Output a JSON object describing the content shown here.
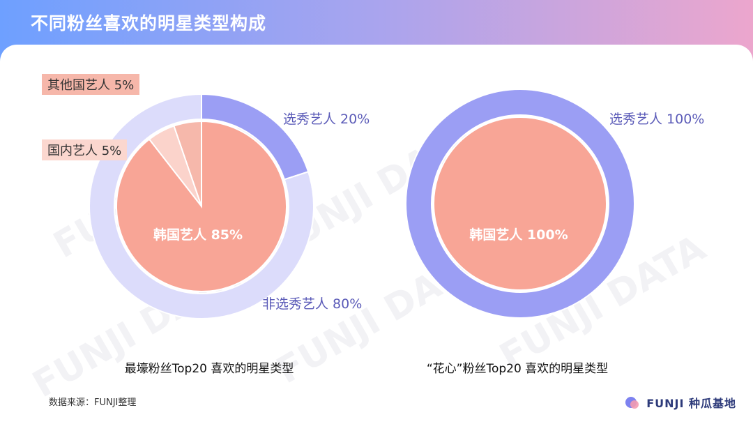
{
  "title": "不同粉丝喜欢的明星类型构成",
  "watermark": "FUNJI DATA",
  "colors": {
    "korean": "#f8a596",
    "domestic": "#fbd3cb",
    "other": "#f6b8ab",
    "draft": "#9b9ef4",
    "non_draft": "#dcdcfb"
  },
  "chart_data": [
    {
      "type": "pie",
      "caption": "最壕粉丝Top20 喜欢的明星类型",
      "inner": {
        "slices": [
          {
            "label": "其他国艺人 5%",
            "value": 5
          },
          {
            "label": "国内艺人 5%",
            "value": 5
          },
          {
            "label": "韩国艺人 85%",
            "value": 85
          }
        ]
      },
      "outer": {
        "slices": [
          {
            "label": "选秀艺人 20%",
            "value": 20
          },
          {
            "label": "非选秀艺人 80%",
            "value": 80
          }
        ]
      }
    },
    {
      "type": "pie",
      "caption": "“花心”粉丝Top20 喜欢的明星类型",
      "inner": {
        "slices": [
          {
            "label": "韩国艺人 100%",
            "value": 100
          }
        ]
      },
      "outer": {
        "slices": [
          {
            "label": "选秀艺人 100%",
            "value": 100
          }
        ]
      }
    }
  ],
  "footer": {
    "source": "数据来源：FUNJI整理",
    "brand": "FUNJI 种瓜基地"
  }
}
